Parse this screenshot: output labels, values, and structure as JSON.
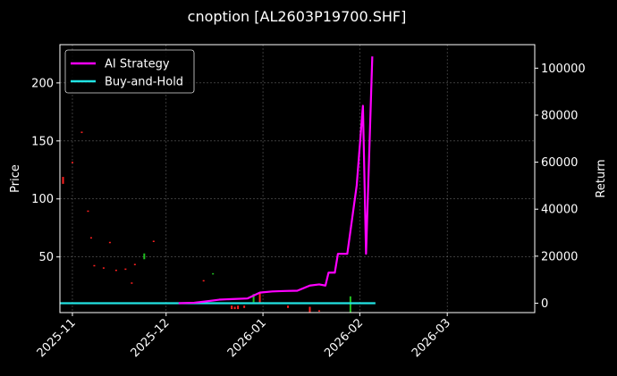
{
  "chart_data": {
    "type": "line",
    "title": "cnoption [AL2603P19700.SHF]",
    "ylabel": "Price",
    "y2label": "Return",
    "ylim": [
      2,
      233
    ],
    "y2lim": [
      -4000,
      110000
    ],
    "xlim": [
      "2025-10-28",
      "2026-03-29"
    ],
    "grid": true,
    "background": "#000000",
    "x_ticks": [
      "2025-11",
      "2025-12",
      "2026-01",
      "2026-02",
      "2026-03"
    ],
    "y_ticks": [
      50,
      100,
      150,
      200
    ],
    "y2_ticks": [
      0,
      20000,
      40000,
      60000,
      80000,
      100000
    ],
    "legend": {
      "placement": "top-left",
      "entries": [
        "AI Strategy",
        "Buy-and-Hold"
      ]
    },
    "series": [
      {
        "name": "AI Strategy",
        "axis": "right",
        "color": "#ff00ff",
        "points": [
          [
            "2025-12-05",
            0
          ],
          [
            "2025-12-10",
            200
          ],
          [
            "2025-12-14",
            800
          ],
          [
            "2025-12-18",
            1500
          ],
          [
            "2025-12-23",
            1800
          ],
          [
            "2025-12-27",
            2000
          ],
          [
            "2025-12-31",
            4500
          ],
          [
            "2026-01-04",
            5000
          ],
          [
            "2026-01-08",
            5200
          ],
          [
            "2026-01-12",
            5300
          ],
          [
            "2026-01-16",
            7500
          ],
          [
            "2026-01-19",
            8000
          ],
          [
            "2026-01-21",
            7500
          ],
          [
            "2026-01-22",
            13000
          ],
          [
            "2026-01-24",
            13000
          ],
          [
            "2026-01-25",
            21000
          ],
          [
            "2026-01-28",
            21000
          ],
          [
            "2026-01-31",
            50000
          ],
          [
            "2026-02-02",
            84000
          ],
          [
            "2026-02-03",
            21000
          ],
          [
            "2026-02-05",
            105000
          ]
        ]
      },
      {
        "name": "Buy-and-Hold",
        "axis": "right",
        "color": "#22e4e4",
        "points": [
          [
            "2025-10-28",
            0
          ],
          [
            "2026-02-06",
            0
          ]
        ]
      }
    ],
    "candles": [
      {
        "date": "2025-10-29",
        "open": 113,
        "close": 119,
        "color": "#ff2020"
      },
      {
        "date": "2025-11-01",
        "open": 132,
        "close": 131,
        "color": "#ff2020"
      },
      {
        "date": "2025-11-04",
        "open": 158,
        "close": 157,
        "color": "#ff2020"
      },
      {
        "date": "2025-11-06",
        "open": 90,
        "close": 89,
        "color": "#ff2020"
      },
      {
        "date": "2025-11-07",
        "open": 67,
        "close": 66,
        "color": "#ff2020"
      },
      {
        "date": "2025-11-08",
        "open": 43,
        "close": 42,
        "color": "#ff2020"
      },
      {
        "date": "2025-11-11",
        "open": 41,
        "close": 40,
        "color": "#ff2020"
      },
      {
        "date": "2025-11-13",
        "open": 63,
        "close": 62,
        "color": "#ff2020"
      },
      {
        "date": "2025-11-15",
        "open": 39,
        "close": 38,
        "color": "#ff2020"
      },
      {
        "date": "2025-11-18",
        "open": 40,
        "close": 39,
        "color": "#ff2020"
      },
      {
        "date": "2025-11-20",
        "open": 28,
        "close": 27,
        "color": "#ff2020"
      },
      {
        "date": "2025-11-21",
        "open": 44,
        "close": 43,
        "color": "#ff2020"
      },
      {
        "date": "2025-11-24",
        "open": 48,
        "close": 53,
        "color": "#20c020"
      },
      {
        "date": "2025-11-27",
        "open": 64,
        "close": 63,
        "color": "#ff2020"
      },
      {
        "date": "2025-12-13",
        "open": 30,
        "close": 29,
        "color": "#ff2020"
      },
      {
        "date": "2025-12-16",
        "open": 36,
        "close": 35,
        "color": "#20c020"
      },
      {
        "date": "2025-12-22",
        "open": 8,
        "close": 5,
        "color": "#ff2020"
      },
      {
        "date": "2025-12-23",
        "open": 7,
        "close": 5,
        "color": "#ff2020"
      },
      {
        "date": "2025-12-24",
        "open": 8,
        "close": 5,
        "color": "#ff2020"
      },
      {
        "date": "2025-12-26",
        "open": 8,
        "close": 6,
        "color": "#ff2020"
      },
      {
        "date": "2025-12-29",
        "open": 18,
        "close": 11,
        "color": "#20c020"
      },
      {
        "date": "2025-12-31",
        "open": 19,
        "close": 10,
        "color": "#ff2020"
      },
      {
        "date": "2026-01-09",
        "open": 8,
        "close": 6,
        "color": "#ff2020"
      },
      {
        "date": "2026-01-16",
        "open": 7,
        "close": 2,
        "color": "#ff2020"
      },
      {
        "date": "2026-01-19",
        "open": 4,
        "close": 3,
        "color": "#ff2020"
      },
      {
        "date": "2026-01-29",
        "open": 16,
        "close": 2,
        "color": "#20c020"
      }
    ]
  }
}
